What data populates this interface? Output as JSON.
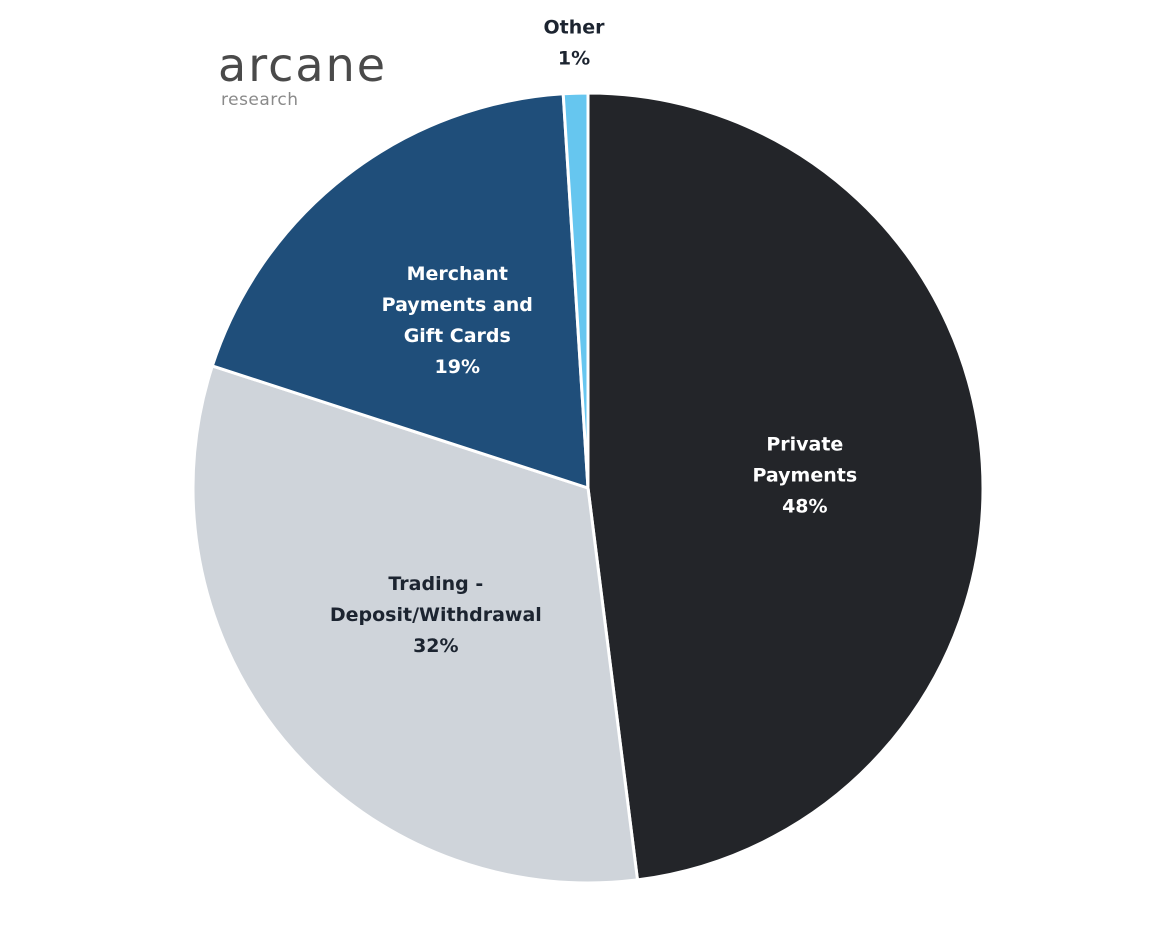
{
  "logo": {
    "name": "arcane",
    "subtitle": "research"
  },
  "chart_data": {
    "type": "pie",
    "title": "",
    "categories": [
      "Private Payments",
      "Trading - Deposit/Withdrawal",
      "Merchant Payments and Gift Cards",
      "Other"
    ],
    "values": [
      48,
      32,
      19,
      1
    ],
    "labels": [
      [
        "Private",
        "Payments",
        "48%"
      ],
      [
        "Trading -",
        "Deposit/Withdrawal",
        "32%"
      ],
      [
        "Merchant",
        "Payments and",
        "Gift Cards",
        "19%"
      ],
      [
        "Other",
        "1%"
      ]
    ],
    "colors": [
      "#232529",
      "#cfd4da",
      "#1f4e7a",
      "#66c6ef"
    ],
    "label_colors": [
      "#ffffff",
      "#1c2430",
      "#ffffff",
      "#1c2430"
    ],
    "start_angle_deg": 0,
    "direction": "clockwise",
    "legend": "none"
  }
}
